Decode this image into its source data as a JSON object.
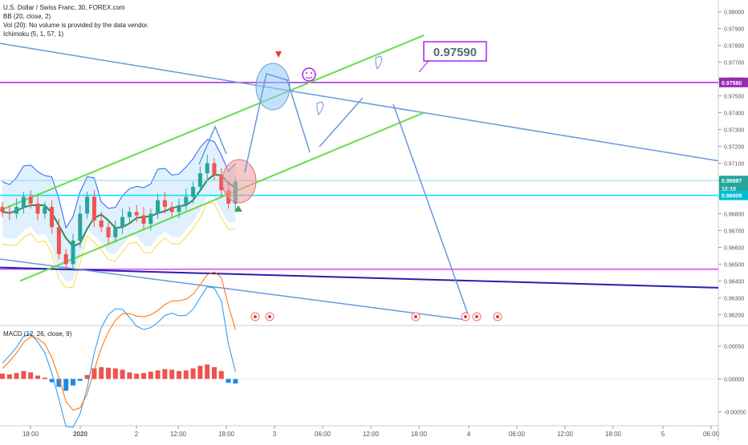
{
  "legend": {
    "symbol": "U.S. Dollar / Swiss Franc, 30, FOREX.com",
    "bb": "BB (20, close, 2)",
    "vol": "Vol (20): No volume is provided by the data vendor.",
    "ichimoku": "Ichimoku (5, 1, 57, 1)"
  },
  "macd_legend": "MACD (12, 26, close, 9)",
  "callout": {
    "text": "0.97590",
    "color": "#9c27b0"
  },
  "colors": {
    "up": "#26a69a",
    "down": "#ef5350",
    "bb": "#2962ff",
    "green_line": "#66dd44",
    "blue_line": "#6699dd",
    "purple": "#aa22ee",
    "magenta": "#e040fb",
    "navy": "#2222aa",
    "cyan": "#00e5ff",
    "axis_text": "#555555"
  },
  "chart_data": [
    {
      "type": "candlestick",
      "title": "",
      "ylim": [
        0.9614,
        0.9807
      ],
      "x_ticks": [
        "18:00",
        "2020",
        "2",
        "12:00",
        "18:00",
        "3",
        "06:00",
        "12:00",
        "18:00",
        "4",
        "06:00",
        "12:00",
        "18:00",
        "5",
        "06:00"
      ],
      "y_ticks": [
        "0.98000",
        "0.97900",
        "0.97800",
        "0.97700",
        "0.97600",
        "0.97500",
        "0.97400",
        "0.97300",
        "0.97200",
        "0.97100",
        "0.97000",
        "0.96900",
        "0.96800",
        "0.96700",
        "0.96600",
        "0.96500",
        "0.96400",
        "0.96300",
        "0.96200"
      ],
      "price_labels": [
        {
          "text": "0.97580",
          "value": 0.9758,
          "color": "#9c27b0"
        },
        {
          "text": "0.96997",
          "value": 0.96997,
          "color": "#26a69a"
        },
        {
          "text": "12:10",
          "value": 0.9695,
          "color": "#26a69a"
        },
        {
          "text": "0.96909",
          "value": 0.96909,
          "color": "#00bcd4"
        }
      ],
      "close": [
        0.9681,
        0.968,
        0.9684,
        0.969,
        0.9686,
        0.968,
        0.9684,
        0.9672,
        0.9656,
        0.965,
        0.9664,
        0.968,
        0.969,
        0.9676,
        0.9672,
        0.9666,
        0.9672,
        0.9678,
        0.9681,
        0.9679,
        0.9674,
        0.968,
        0.9688,
        0.9684,
        0.9681,
        0.9685,
        0.969,
        0.9696,
        0.9704,
        0.971,
        0.9703,
        0.9694,
        0.9686,
        0.9699
      ]
    },
    {
      "type": "macd",
      "title": "",
      "ylim": [
        -0.0007,
        0.0008
      ],
      "y_ticks": [
        "0.00050",
        "0.00000",
        "-0.00050"
      ],
      "histogram": [
        8e-05,
        7e-05,
        9e-05,
        0.00012,
        0.0001,
        5e-05,
        2e-05,
        -5e-05,
        -0.00012,
        -0.00018,
        -0.0001,
        -3e-05,
        6e-05,
        0.00016,
        0.00018,
        0.00017,
        0.00016,
        0.00014,
        0.0001,
        8e-05,
        9e-05,
        0.00011,
        0.00013,
        0.00015,
        0.00014,
        0.00012,
        0.00013,
        0.00016,
        0.0002,
        0.00022,
        0.00018,
        0.00012,
        -6e-05,
        -7e-05
      ]
    }
  ]
}
